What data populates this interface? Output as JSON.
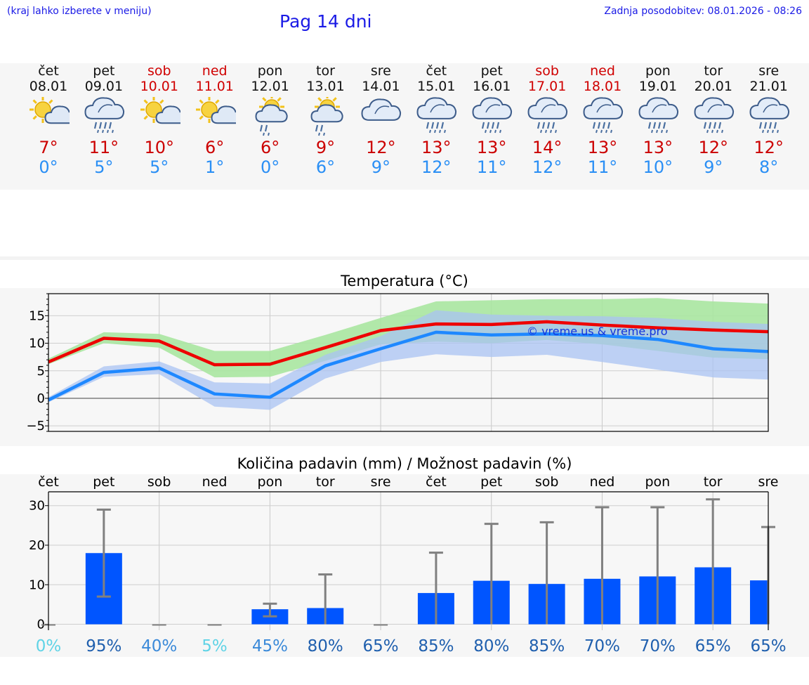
{
  "header": {
    "hint": "(kraj lahko izberete v meniju)",
    "title": "Pag 14 dni",
    "updated": "Zadnja posodobitev: 08.01.2026 - 08:26"
  },
  "days": [
    {
      "name": "čet",
      "date": "08.01",
      "weekend": false,
      "icon": "sun-cloud-icon",
      "max": "7°",
      "min": "0°"
    },
    {
      "name": "pet",
      "date": "09.01",
      "weekend": false,
      "icon": "rain-cloud-icon",
      "max": "11°",
      "min": "5°"
    },
    {
      "name": "sob",
      "date": "10.01",
      "weekend": true,
      "icon": "sun-cloud-icon",
      "max": "10°",
      "min": "5°"
    },
    {
      "name": "ned",
      "date": "11.01",
      "weekend": true,
      "icon": "sun-cloud-icon",
      "max": "6°",
      "min": "1°"
    },
    {
      "name": "pon",
      "date": "12.01",
      "weekend": false,
      "icon": "sun-rain-icon",
      "max": "6°",
      "min": "0°"
    },
    {
      "name": "tor",
      "date": "13.01",
      "weekend": false,
      "icon": "sun-rain-icon",
      "max": "9°",
      "min": "6°"
    },
    {
      "name": "sre",
      "date": "14.01",
      "weekend": false,
      "icon": "cloud-icon",
      "max": "12°",
      "min": "9°"
    },
    {
      "name": "čet",
      "date": "15.01",
      "weekend": false,
      "icon": "rain-cloud-icon",
      "max": "13°",
      "min": "12°"
    },
    {
      "name": "pet",
      "date": "16.01",
      "weekend": false,
      "icon": "rain-cloud-icon",
      "max": "13°",
      "min": "11°"
    },
    {
      "name": "sob",
      "date": "17.01",
      "weekend": true,
      "icon": "rain-cloud-icon",
      "max": "14°",
      "min": "12°"
    },
    {
      "name": "ned",
      "date": "18.01",
      "weekend": true,
      "icon": "rain-cloud-icon",
      "max": "13°",
      "min": "11°"
    },
    {
      "name": "pon",
      "date": "19.01",
      "weekend": false,
      "icon": "rain-cloud-icon",
      "max": "13°",
      "min": "10°"
    },
    {
      "name": "tor",
      "date": "20.01",
      "weekend": false,
      "icon": "rain-cloud-icon",
      "max": "12°",
      "min": "9°"
    },
    {
      "name": "sre",
      "date": "21.01",
      "weekend": false,
      "icon": "rain-cloud-icon",
      "max": "12°",
      "min": "8°"
    }
  ],
  "colors": {
    "max": "#ee0000",
    "min": "#1e88ff",
    "max_band": "#a8e6a0",
    "min_band": "#a9c3f3",
    "bar": "#0055ff",
    "whisker": "#808080"
  },
  "chart_data": [
    {
      "type": "line",
      "title": "Temperatura (°C)",
      "watermark": "© vreme.us & vreme.pro",
      "x": [
        0,
        1,
        2,
        3,
        4,
        5,
        6,
        7,
        8,
        9,
        10,
        11,
        12,
        13
      ],
      "ylim": [
        -6,
        19
      ],
      "yticks": [
        -5,
        0,
        5,
        10,
        15
      ],
      "ytick_labels": [
        "−5",
        "0",
        "5",
        "10",
        "15"
      ],
      "series": [
        {
          "name": "max",
          "values": [
            6.6,
            10.9,
            10.4,
            6.1,
            6.2,
            9.2,
            12.3,
            13.5,
            13.4,
            13.9,
            13.3,
            12.8,
            12.4,
            12.1
          ],
          "band_low": [
            6.2,
            10.0,
            9.2,
            3.8,
            3.9,
            6.8,
            9.8,
            10.3,
            10.0,
            10.6,
            9.8,
            8.6,
            7.4,
            7.1
          ],
          "band_high": [
            7.2,
            12.0,
            11.7,
            8.6,
            8.6,
            11.5,
            14.6,
            17.6,
            17.8,
            18.0,
            18.0,
            18.2,
            17.6,
            17.2
          ]
        },
        {
          "name": "min",
          "values": [
            -0.3,
            4.7,
            5.5,
            0.8,
            0.2,
            5.9,
            9.0,
            12.0,
            11.5,
            11.7,
            11.4,
            10.7,
            9.0,
            8.5
          ],
          "band_low": [
            -0.7,
            3.9,
            4.4,
            -1.5,
            -2.1,
            3.6,
            6.6,
            8.0,
            7.5,
            7.9,
            6.6,
            5.2,
            3.8,
            3.4
          ],
          "band_high": [
            0.2,
            5.8,
            6.7,
            2.9,
            2.7,
            7.9,
            11.3,
            16.0,
            15.2,
            15.0,
            14.9,
            14.6,
            13.9,
            13.5
          ]
        }
      ]
    },
    {
      "type": "bar",
      "title": "Količina padavin (mm) / Možnost padavin (%)",
      "categories": [
        "čet",
        "pet",
        "sob",
        "ned",
        "pon",
        "tor",
        "sre",
        "čet",
        "pet",
        "sob",
        "ned",
        "pon",
        "tor",
        "sre"
      ],
      "values": [
        0,
        18.0,
        0,
        0,
        3.8,
        4.1,
        0,
        7.9,
        11.0,
        10.2,
        11.5,
        12.1,
        14.4,
        11.1
      ],
      "err_low": [
        0,
        7.0,
        0,
        0,
        2.0,
        0,
        0,
        0,
        0,
        0,
        0,
        0,
        0,
        0
      ],
      "err_high": [
        0,
        29.0,
        0,
        0,
        5.2,
        12.6,
        0,
        18.1,
        25.4,
        25.8,
        29.6,
        29.6,
        31.6,
        24.6
      ],
      "ylim": [
        -1.5,
        33.5
      ],
      "yticks": [
        0,
        10,
        20,
        30
      ],
      "ytick_labels": [
        "0",
        "10",
        "20",
        "30"
      ],
      "probability": [
        "0%",
        "95%",
        "40%",
        "5%",
        "45%",
        "80%",
        "65%",
        "85%",
        "80%",
        "85%",
        "70%",
        "70%",
        "65%",
        "65%"
      ],
      "probability_values": [
        0,
        95,
        40,
        5,
        45,
        80,
        65,
        85,
        80,
        85,
        70,
        70,
        65,
        65
      ]
    }
  ]
}
